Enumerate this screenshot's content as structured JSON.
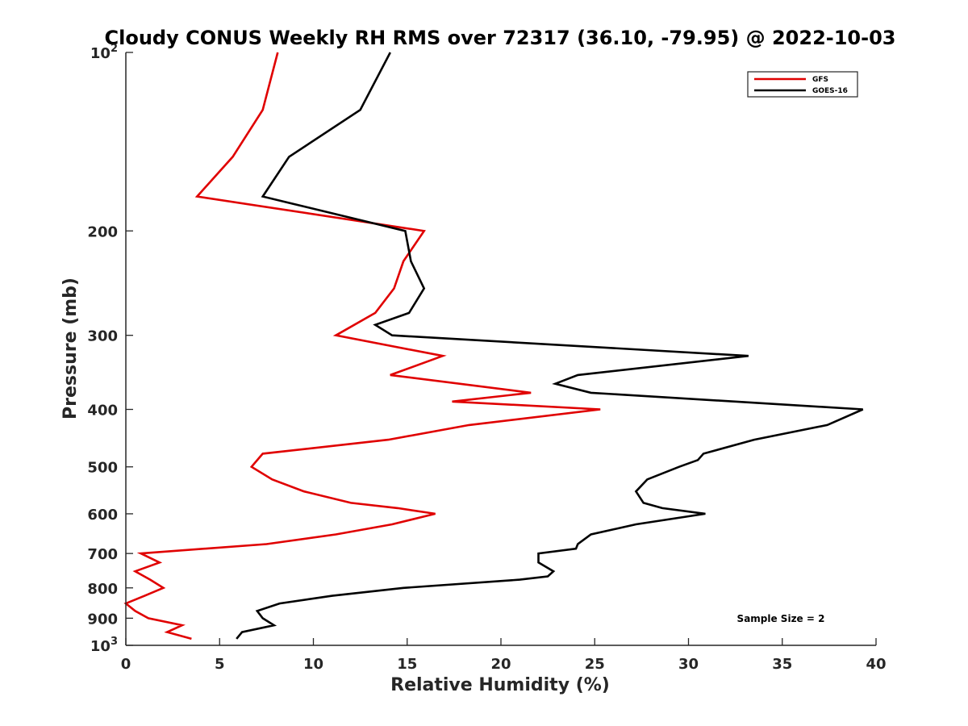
{
  "chart_data": {
    "type": "line",
    "title": "Cloudy CONUS Weekly RH RMS over 72317 (36.10, -79.95) @ 2022-10-03",
    "xlabel": "Relative Humidity (%)",
    "ylabel": "Pressure (mb)",
    "xlim": [
      0,
      40
    ],
    "ylim": [
      100,
      1000
    ],
    "y_scale": "log",
    "y_reversed": true,
    "x_ticks": [
      "0",
      "5",
      "10",
      "15",
      "20",
      "25",
      "30",
      "35",
      "40"
    ],
    "y_ticks": [
      {
        "value": 100,
        "base": "10",
        "exp": "2"
      },
      {
        "value": 200,
        "label": "200"
      },
      {
        "value": 300,
        "label": "300"
      },
      {
        "value": 400,
        "label": "400"
      },
      {
        "value": 500,
        "label": "500"
      },
      {
        "value": 600,
        "label": "600"
      },
      {
        "value": 700,
        "label": "700"
      },
      {
        "value": 800,
        "label": "800"
      },
      {
        "value": 900,
        "label": "900"
      },
      {
        "value": 1000,
        "base": "10",
        "exp": "3"
      }
    ],
    "legend_position": "top-right",
    "annotation": "Sample Size = 2",
    "series": [
      {
        "name": "GFS",
        "color": "#e00000",
        "points": [
          [
            8.1,
            100
          ],
          [
            7.3,
            125
          ],
          [
            5.7,
            150
          ],
          [
            3.8,
            175
          ],
          [
            15.9,
            200
          ],
          [
            14.8,
            225
          ],
          [
            14.3,
            250
          ],
          [
            13.3,
            275
          ],
          [
            11.2,
            300
          ],
          [
            16.9,
            325
          ],
          [
            14.1,
            350
          ],
          [
            21.6,
            375
          ],
          [
            17.4,
            388
          ],
          [
            25.3,
            400
          ],
          [
            18.3,
            425
          ],
          [
            14.0,
            450
          ],
          [
            7.3,
            475
          ],
          [
            6.7,
            500
          ],
          [
            7.8,
            525
          ],
          [
            9.5,
            550
          ],
          [
            12.0,
            575
          ],
          [
            14.5,
            587
          ],
          [
            16.5,
            600
          ],
          [
            14.2,
            625
          ],
          [
            11.2,
            650
          ],
          [
            7.5,
            675
          ],
          [
            0.8,
            700
          ],
          [
            1.8,
            725
          ],
          [
            0.5,
            750
          ],
          [
            1.3,
            775
          ],
          [
            2.0,
            800
          ],
          [
            1.0,
            825
          ],
          [
            0.0,
            850
          ],
          [
            0.5,
            875
          ],
          [
            1.2,
            900
          ],
          [
            3.0,
            925
          ],
          [
            2.2,
            950
          ],
          [
            3.5,
            975
          ]
        ]
      },
      {
        "name": "GOES-16",
        "color": "#000000",
        "points": [
          [
            14.1,
            100
          ],
          [
            12.5,
            125
          ],
          [
            8.7,
            150
          ],
          [
            7.3,
            175
          ],
          [
            14.9,
            200
          ],
          [
            15.2,
            225
          ],
          [
            15.9,
            250
          ],
          [
            15.1,
            275
          ],
          [
            13.3,
            288
          ],
          [
            14.2,
            300
          ],
          [
            33.2,
            325
          ],
          [
            24.1,
            350
          ],
          [
            22.9,
            362
          ],
          [
            24.8,
            375
          ],
          [
            39.3,
            400
          ],
          [
            37.4,
            425
          ],
          [
            33.5,
            450
          ],
          [
            30.8,
            475
          ],
          [
            30.5,
            487
          ],
          [
            29.5,
            500
          ],
          [
            27.8,
            525
          ],
          [
            27.2,
            550
          ],
          [
            27.6,
            575
          ],
          [
            28.6,
            587
          ],
          [
            30.9,
            600
          ],
          [
            27.2,
            625
          ],
          [
            24.8,
            650
          ],
          [
            24.1,
            675
          ],
          [
            24.0,
            687
          ],
          [
            22.0,
            700
          ],
          [
            22.0,
            725
          ],
          [
            22.8,
            750
          ],
          [
            22.5,
            765
          ],
          [
            21.0,
            775
          ],
          [
            14.8,
            800
          ],
          [
            11.0,
            825
          ],
          [
            8.2,
            850
          ],
          [
            7.0,
            875
          ],
          [
            7.3,
            900
          ],
          [
            7.9,
            925
          ],
          [
            6.2,
            950
          ],
          [
            5.9,
            975
          ]
        ]
      }
    ]
  }
}
